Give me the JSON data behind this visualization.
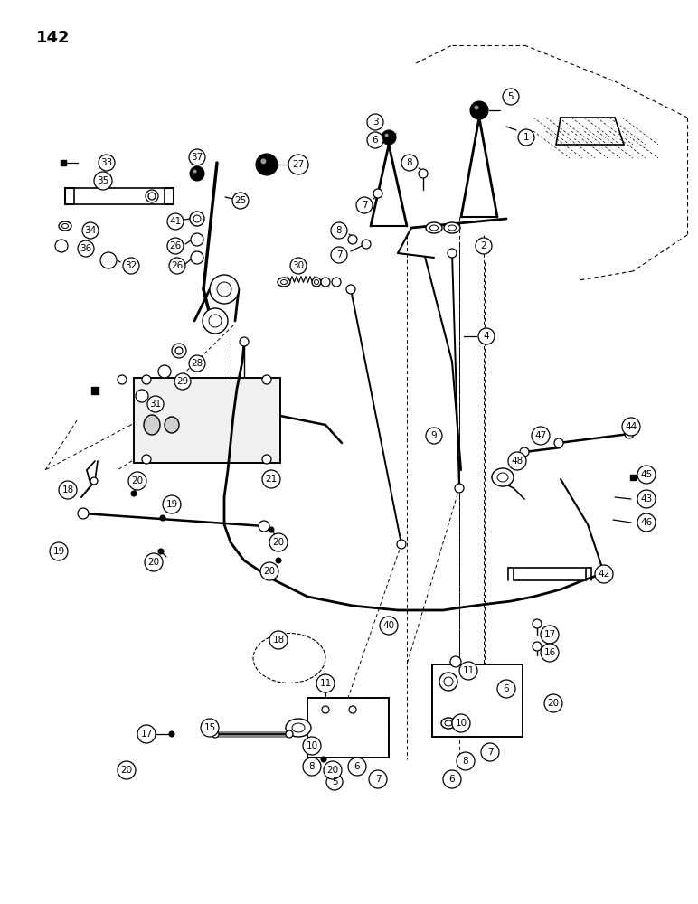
{
  "page_number": "142",
  "bg_color": "#ffffff",
  "line_color": "#000000",
  "figsize": [
    7.72,
    10.0
  ],
  "dpi": 100
}
